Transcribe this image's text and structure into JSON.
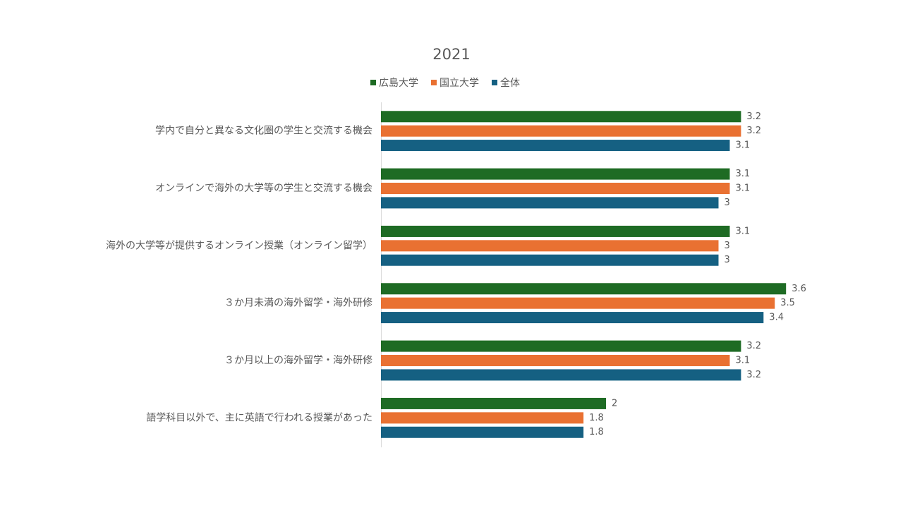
{
  "chart_data": {
    "type": "hbar",
    "title": "2021",
    "categories": [
      "学内で自分と異なる文化圏の学生と交流する機会",
      "オンラインで海外の大学等の学生と交流する機会",
      "海外の大学等が提供するオンライン授業（オンライン留学）",
      "３か月未満の海外留学・海外研修",
      "３か月以上の海外留学・海外研修",
      "語学科目以外で、主に英語で行われる授業があった"
    ],
    "series": [
      {
        "name": "広島大学",
        "color": "#1e6b24",
        "values": [
          3.2,
          3.1,
          3.1,
          3.6,
          3.2,
          2
        ]
      },
      {
        "name": "国立大学",
        "color": "#e97132",
        "values": [
          3.2,
          3.1,
          3,
          3.5,
          3.1,
          1.8
        ]
      },
      {
        "name": "全体",
        "color": "#156082",
        "values": [
          3.1,
          3,
          3,
          3.4,
          3.2,
          1.8
        ]
      }
    ],
    "xlim": [
      0,
      4
    ],
    "legend": "top"
  }
}
